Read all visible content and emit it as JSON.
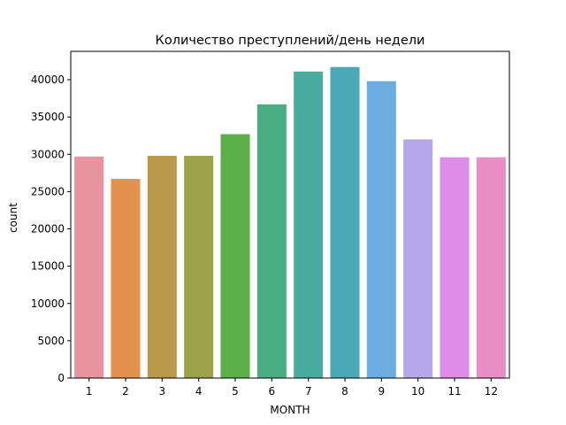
{
  "chart_data": {
    "type": "bar",
    "title": "Количество преступлений/день недели",
    "xlabel": "MONTH",
    "ylabel": "count",
    "categories": [
      "1",
      "2",
      "3",
      "4",
      "5",
      "6",
      "7",
      "8",
      "9",
      "10",
      "11",
      "12"
    ],
    "values": [
      29700,
      26700,
      29800,
      29800,
      32700,
      36700,
      41100,
      41700,
      39800,
      32000,
      29600,
      29600
    ],
    "colors": [
      "#E8949E",
      "#E3914F",
      "#B89A4A",
      "#9AA24A",
      "#5BAE48",
      "#48AD82",
      "#4AABA1",
      "#4AA8B7",
      "#6AADE0",
      "#B6A7EA",
      "#DE8DE6",
      "#E88DC6"
    ],
    "ylim": [
      0,
      43800
    ],
    "yticks": [
      0,
      5000,
      10000,
      15000,
      20000,
      25000,
      30000,
      35000,
      40000
    ],
    "ytick_labels": [
      "0",
      "5000",
      "10000",
      "15000",
      "20000",
      "25000",
      "30000",
      "35000",
      "40000"
    ],
    "grid": false,
    "legend": "none"
  }
}
